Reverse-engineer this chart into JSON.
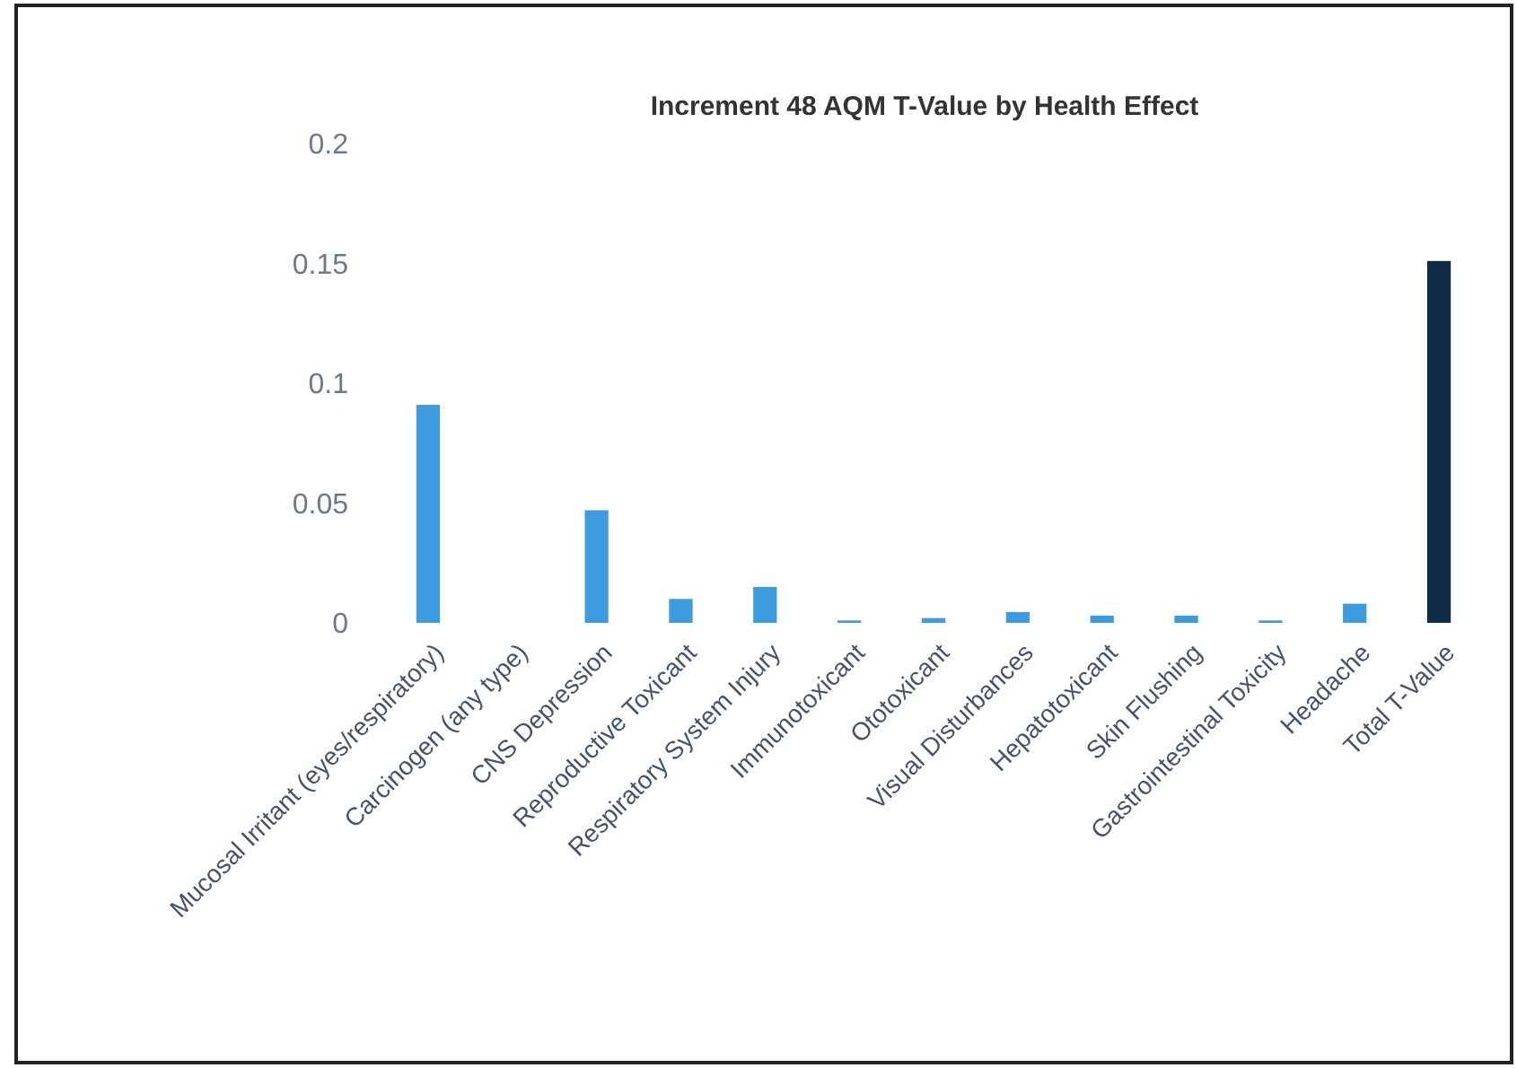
{
  "chart_data": {
    "type": "bar",
    "title": "Increment 48 AQM T-Value by Health Effect",
    "categories": [
      "Mucosal Irritant (eyes/respiratory)",
      "Carcinogen (any type)",
      "CNS Depression",
      "Reproductive Toxicant",
      "Respiratory System Injury",
      "Immunotoxicant",
      "Ototoxicant",
      "Visual Disturbances",
      "Hepatotoxicant",
      "Skin Flushing",
      "Gastrointestinal Toxicity",
      "Headache",
      "Total T-Value"
    ],
    "values": [
      0.091,
      0,
      0.047,
      0.01,
      0.015,
      0.001,
      0.002,
      0.0045,
      0.003,
      0.003,
      0.001,
      0.008,
      0.151
    ],
    "colors": [
      "#3d9be0",
      "#3d9be0",
      "#3d9be0",
      "#3d9be0",
      "#3d9be0",
      "#3d9be0",
      "#3d9be0",
      "#3d9be0",
      "#3d9be0",
      "#3d9be0",
      "#3d9be0",
      "#3d9be0",
      "#0e2b45"
    ],
    "ylim": [
      0,
      0.2
    ],
    "yticks": [
      0,
      0.05,
      0.1,
      0.15,
      0.2
    ],
    "grid": false
  }
}
